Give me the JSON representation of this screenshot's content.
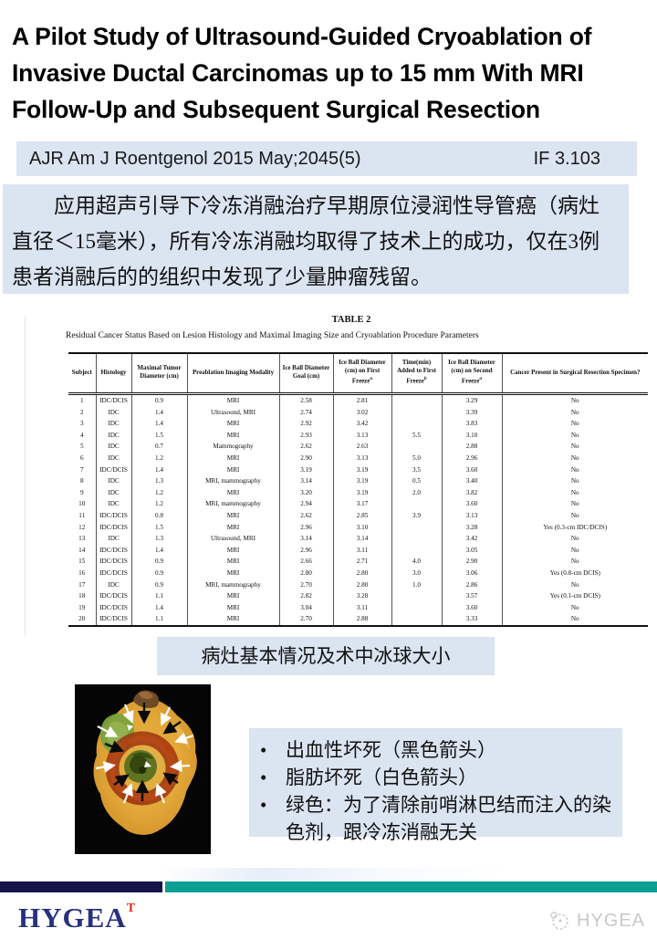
{
  "title": "A Pilot Study of Ultrasound-Guided Cryoablation of Invasive Ductal Carcinomas up to 15 mm With MRI Follow-Up and Subsequent Surgical Resection",
  "citation": {
    "text": "AJR Am J Roentgenol 2015 May;2045(5)",
    "impact_factor": "IF 3.103"
  },
  "abstract_cn": "应用超声引导下冷冻消融治疗早期原位浸润性导管癌（病灶直径＜15毫米），所有冷冻消融均取得了技术上的成功，仅在3例患者消融后的的组织中发现了少量肿瘤残留。",
  "table": {
    "label": "TABLE 2",
    "title": "Residual Cancer Status Based on Lesion Histology and Maximal Imaging Size and Cryoablation Procedure Parameters",
    "columns": [
      {
        "label": "Subject",
        "sup": ""
      },
      {
        "label": "Histology",
        "sup": ""
      },
      {
        "label": "Maximal Tumor Diameter (cm)",
        "sup": ""
      },
      {
        "label": "Preablation Imaging Modality",
        "sup": ""
      },
      {
        "label": "Ice Ball Diameter Goal (cm)",
        "sup": ""
      },
      {
        "label": "Ice Ball Diameter (cm) on First Freeze",
        "sup": "a"
      },
      {
        "label": "Time(min) Added to First Freeze",
        "sup": "b"
      },
      {
        "label": "Ice Ball Diameter (cm) on Second Freeze",
        "sup": "a"
      },
      {
        "label": "Cancer Present in Surgical Resection Specimen?",
        "sup": ""
      }
    ],
    "rows": [
      [
        "1",
        "IDC/DCIS",
        "0.9",
        "MRI",
        "2.58",
        "2.81",
        "",
        "3.29",
        "No"
      ],
      [
        "2",
        "IDC",
        "1.4",
        "Ultrasound, MRI",
        "2.74",
        "3.02",
        "",
        "3.39",
        "No"
      ],
      [
        "3",
        "IDC",
        "1.4",
        "MRI",
        "2.92",
        "3.42",
        "",
        "3.83",
        "No"
      ],
      [
        "4",
        "IDC",
        "1.5",
        "MRI",
        "2.93",
        "3.13",
        "5.5",
        "3.10",
        "No"
      ],
      [
        "5",
        "IDC",
        "0.7",
        "Mammography",
        "2.62",
        "2.63",
        "",
        "2.88",
        "No"
      ],
      [
        "6",
        "IDC",
        "1.2",
        "MRI",
        "2.90",
        "3.13",
        "5.0",
        "2.96",
        "No"
      ],
      [
        "7",
        "IDC/DCIS",
        "1.4",
        "MRI",
        "3.19",
        "3.19",
        "3.5",
        "3.60",
        "No"
      ],
      [
        "8",
        "IDC",
        "1.3",
        "MRI, mammography",
        "3.14",
        "3.19",
        "0.5",
        "3.40",
        "No"
      ],
      [
        "9",
        "IDC",
        "1.2",
        "MRI",
        "3.20",
        "3.19",
        "2.0",
        "3.82",
        "No"
      ],
      [
        "10",
        "IDC",
        "1.2",
        "MRI, mammography",
        "2.94",
        "3.17",
        "",
        "3.60",
        "No"
      ],
      [
        "11",
        "IDC/DCIS",
        "0.8",
        "MRI",
        "2.62",
        "2.85",
        "3.9",
        "3.13",
        "No"
      ],
      [
        "12",
        "IDC/DCIS",
        "1.5",
        "MRI",
        "2.96",
        "3.10",
        "",
        "3.28",
        "Yes (0.3-cm IDC/DCIS)"
      ],
      [
        "13",
        "IDC",
        "1.3",
        "Ultrasound, MRI",
        "3.14",
        "3.14",
        "",
        "3.42",
        "No"
      ],
      [
        "14",
        "IDC/DCIS",
        "1.4",
        "MRI",
        "2.96",
        "3.11",
        "",
        "3.05",
        "No"
      ],
      [
        "15",
        "IDC/DCIS",
        "0.9",
        "MRI",
        "2.66",
        "2.71",
        "4.0",
        "2.90",
        "No"
      ],
      [
        "16",
        "IDC/DCIS",
        "0.9",
        "MRI",
        "2.80",
        "2.80",
        "3.0",
        "3.06",
        "Yes (0.8-cm DCIS)"
      ],
      [
        "17",
        "IDC",
        "0.9",
        "MRI, mammography",
        "2.70",
        "2.80",
        "1.0",
        "2.86",
        "No"
      ],
      [
        "18",
        "IDC/DCIS",
        "1.1",
        "MRI",
        "2.82",
        "3.28",
        "",
        "3.57",
        "Yes (0.1-cm DCIS)"
      ],
      [
        "19",
        "IDC/DCIS",
        "1.4",
        "MRI",
        "3.04",
        "3.11",
        "",
        "3.60",
        "No"
      ],
      [
        "20",
        "IDC/DCIS",
        "1.1",
        "MRI",
        "2.70",
        "2.88",
        "",
        "3.33",
        "No"
      ]
    ],
    "caption_cn": "病灶基本情况及术中冰球大小"
  },
  "figure": {
    "bullets": [
      "出血性坏死（黑色箭头）",
      "脂肪坏死（白色箭头）",
      "绿色：为了清除前哨淋巴结而注入的染色剂，跟冷冻消融无关"
    ]
  },
  "footer": {
    "logo_text": "HYGEA",
    "logo_tm": "T",
    "watermark_text": "HYGEA"
  },
  "colors": {
    "accent_light_blue": "#dbe4f1",
    "bar_navy": "#17144a",
    "bar_teal": "#0a9f92",
    "logo_navy": "#28317e",
    "logo_red": "#e8251f"
  }
}
